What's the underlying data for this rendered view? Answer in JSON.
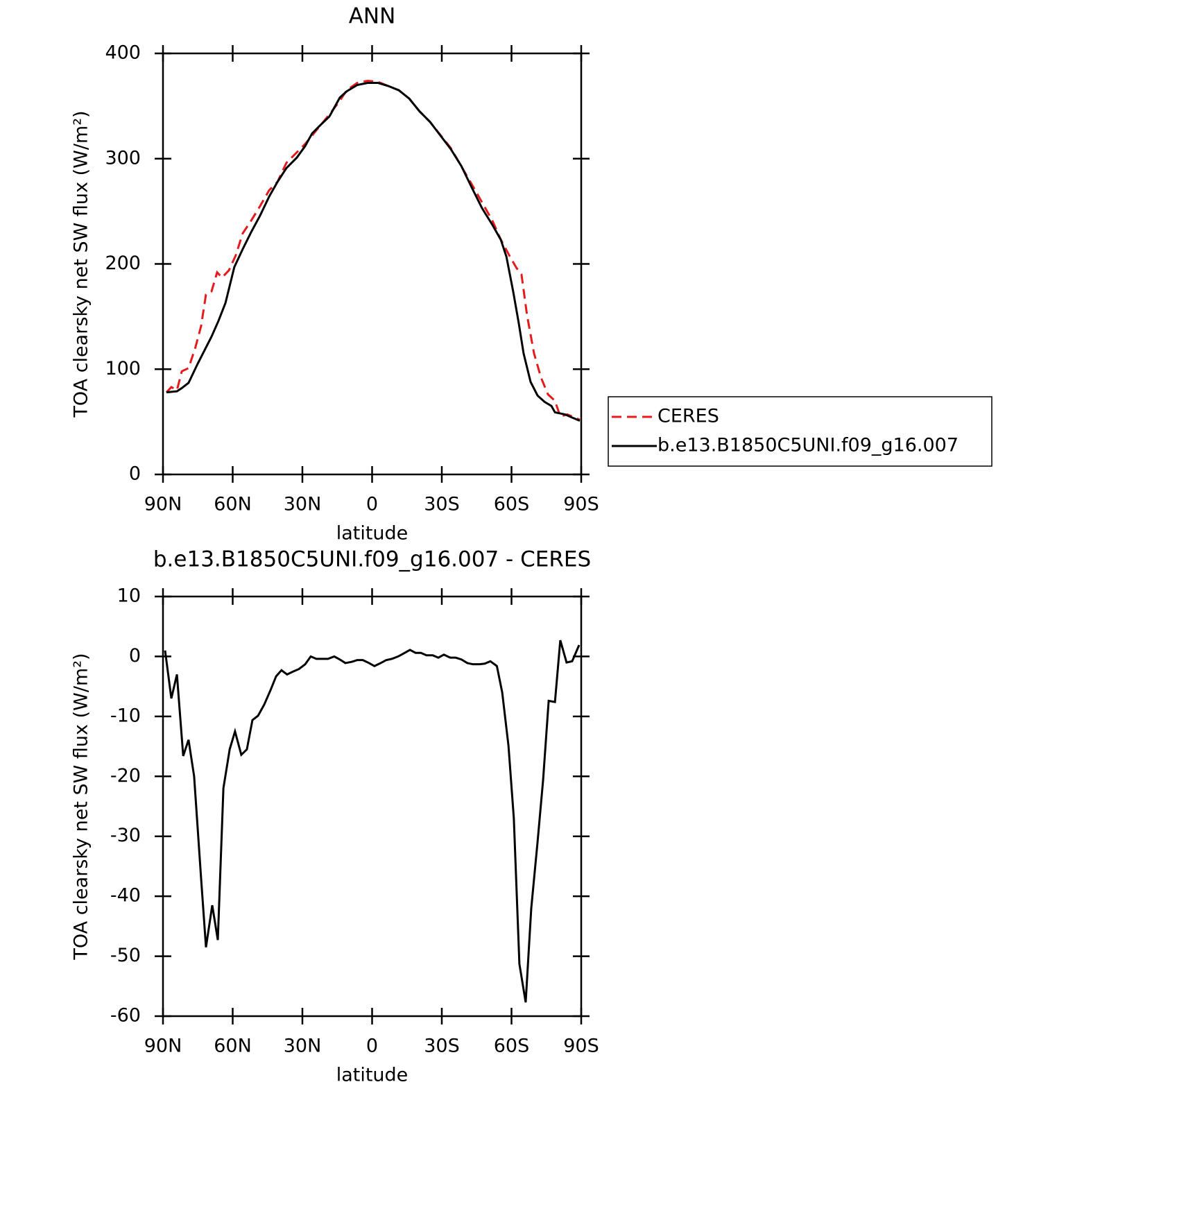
{
  "chart_data": [
    {
      "type": "line",
      "title": "ANN",
      "xlabel": "latitude",
      "ylabel": "TOA clearsky net SW flux (W/m²)",
      "xlim": [
        90,
        -90
      ],
      "xticks": [
        {
          "value": 90,
          "label": "90N"
        },
        {
          "value": 60,
          "label": "60N"
        },
        {
          "value": 30,
          "label": "30N"
        },
        0,
        {
          "value": -30,
          "label": "30S"
        },
        {
          "value": -60,
          "label": "60S"
        },
        {
          "value": -90,
          "label": "90S"
        }
      ],
      "ylim": [
        0,
        400
      ],
      "yticks": [
        0,
        100,
        200,
        300,
        400
      ],
      "legend": "right",
      "series": [
        {
          "name": "CERES",
          "color": "#e41a1c",
          "line_style": "dashed",
          "x": [
            88.5,
            86.4,
            84,
            81.9,
            79,
            76,
            73.6,
            71.5,
            69.1,
            66.7,
            64.6,
            61.6,
            58.7,
            55.7,
            52.1,
            48.2,
            44.3,
            40.7,
            36.9,
            32.4,
            28.8,
            25.8,
            18.4,
            13.9,
            10.9,
            6.4,
            1.9,
            -2.5,
            -7,
            -11.5,
            -16,
            -20.4,
            -24.9,
            -33.9,
            -42.8,
            -51.8,
            -55.4,
            -59.3,
            -62.2,
            -64.3,
            -66.7,
            -69.7,
            -72.7,
            -75.7,
            -78.7,
            -81,
            -84,
            -89.4
          ],
          "values": [
            78,
            83,
            80,
            98,
            101,
            121,
            141,
            171,
            174,
            192,
            187,
            194,
            208,
            229,
            241,
            255,
            270,
            278,
            296,
            306,
            314,
            322,
            342,
            355,
            365,
            372,
            374,
            373,
            369,
            365,
            357,
            345,
            335,
            310,
            276,
            241,
            223,
            207,
            196,
            190,
            151,
            115,
            92,
            76,
            70,
            55,
            57,
            52
          ]
        },
        {
          "name": "b.e13.B1850C5UNI.f09_g16.007",
          "color": "#000000",
          "line_style": "solid",
          "x": [
            88.5,
            84,
            81.9,
            79,
            75.1,
            72.1,
            69.1,
            66.1,
            63.1,
            59.3,
            55.7,
            52.1,
            48.2,
            44.3,
            40.7,
            36.9,
            32.4,
            28.8,
            25.8,
            22.2,
            18.4,
            13.9,
            10.9,
            6.4,
            1.9,
            -2.5,
            -7,
            -11.5,
            -16,
            -20.4,
            -24.9,
            -29.4,
            -33.9,
            -38.4,
            -42.8,
            -47.3,
            -51.8,
            -55.4,
            -57.8,
            -60.7,
            -63.1,
            -65.2,
            -68.2,
            -71.2,
            -74.2,
            -77.2,
            -78.7,
            -83.1,
            -86.1,
            -89.4
          ],
          "values": [
            78,
            79,
            82,
            87,
            105,
            118,
            131,
            146,
            163,
            197,
            214,
            230,
            246,
            264,
            278,
            291,
            301,
            312,
            324,
            332,
            340,
            358,
            364,
            370,
            372,
            372,
            369,
            365,
            357,
            345,
            335,
            322,
            309,
            293,
            273,
            253,
            237,
            223,
            207,
            174,
            144,
            115,
            88,
            75,
            69,
            65,
            59,
            57,
            54,
            51
          ]
        }
      ]
    },
    {
      "type": "line",
      "title": "b.e13.B1850C5UNI.f09_g16.007 - CERES",
      "xlabel": "latitude",
      "ylabel": "TOA clearsky net SW flux (W/m²)",
      "xlim": [
        90,
        -90
      ],
      "xticks": [
        {
          "value": 90,
          "label": "90N"
        },
        {
          "value": 60,
          "label": "60N"
        },
        {
          "value": 30,
          "label": "30N"
        },
        0,
        {
          "value": -30,
          "label": "30S"
        },
        {
          "value": -60,
          "label": "60S"
        },
        {
          "value": -90,
          "label": "90S"
        }
      ],
      "ylim": [
        -60,
        10
      ],
      "yticks": [
        -60,
        -50,
        -40,
        -30,
        -20,
        -10,
        0,
        10
      ],
      "series": [
        {
          "name": "b.e13.B1850C5UNI.f09_g16.007 - CERES",
          "color": "#000000",
          "line_style": "solid",
          "x": [
            89.1,
            86.4,
            84,
            81.3,
            79,
            76.6,
            73.6,
            71.5,
            68.8,
            66.4,
            64,
            61.3,
            59,
            56.3,
            53.9,
            51.5,
            49.1,
            46.4,
            43.7,
            41.3,
            39,
            36.6,
            33.9,
            31.5,
            28.8,
            26.4,
            24,
            21.3,
            19,
            16.3,
            13.9,
            11.5,
            8.8,
            6.4,
            4,
            1.3,
            -1,
            -3.7,
            -6.1,
            -8.5,
            -11.2,
            -13.6,
            -16.3,
            -18.7,
            -21,
            -23.4,
            -26.1,
            -28.5,
            -30.9,
            -33.6,
            -36,
            -38.4,
            -41,
            -43.4,
            -46.3,
            -48.5,
            -50.9,
            -53.7,
            -56,
            -58.7,
            -61,
            -63.4,
            -66.1,
            -68.5,
            -71.2,
            -73.6,
            -76,
            -78.7,
            -81,
            -83.7,
            -86.1,
            -89.1
          ],
          "values": [
            1,
            -7,
            -3,
            -16.6,
            -13.9,
            -20,
            -37,
            -48.5,
            -41.5,
            -47.3,
            -22,
            -15.5,
            -12.5,
            -16.4,
            -15.5,
            -10.6,
            -9.9,
            -8,
            -5.6,
            -3.3,
            -2.3,
            -3,
            -2.5,
            -2.1,
            -1.3,
            0,
            -0.4,
            -0.4,
            -0.4,
            0,
            -0.5,
            -1.1,
            -0.9,
            -0.6,
            -0.6,
            -1.1,
            -1.6,
            -1.1,
            -0.6,
            -0.4,
            0,
            0.5,
            1.1,
            0.6,
            0.6,
            0.2,
            0.2,
            -0.2,
            0.3,
            -0.2,
            -0.2,
            -0.5,
            -1.1,
            -1.3,
            -1.3,
            -1.2,
            -0.8,
            -1.6,
            -6,
            -14.9,
            -27,
            -51.3,
            -57.7,
            -42,
            -31,
            -20.6,
            -7.4,
            -7.6,
            2.7,
            -1,
            -0.8,
            1.9
          ]
        }
      ]
    }
  ]
}
